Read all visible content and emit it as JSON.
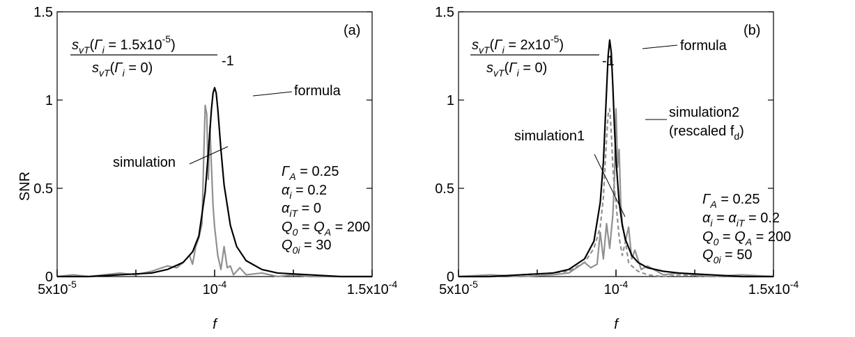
{
  "colors": {
    "formula": "#000000",
    "simulation": "#909090",
    "axis": "#000000",
    "background": "#ffffff"
  },
  "chart_data": [
    {
      "type": "line",
      "panel_label": "(a)",
      "xlabel": "f",
      "ylabel": "SNR",
      "xlim": [
        5e-05,
        0.00015
      ],
      "ylim": [
        0,
        1.5
      ],
      "grid": false,
      "x_tick_labels": [
        {
          "value": 5e-05,
          "base": "5x10",
          "exp": "-5"
        },
        {
          "value": 0.0001,
          "base": "10",
          "exp": "-4"
        },
        {
          "value": 0.00015,
          "base": "1.5x10",
          "exp": "-4"
        }
      ],
      "y_tick_labels": [
        {
          "value": 0,
          "text": "0"
        },
        {
          "value": 0.5,
          "text": "0.5"
        },
        {
          "value": 1,
          "text": "1"
        },
        {
          "value": 1.5,
          "text": "1.5"
        }
      ],
      "formula_fraction": {
        "numerator": "s_vT(Γ_i = 1.5x10^-5)",
        "denominator": "s_vT(Γ_i = 0)",
        "suffix": "-1"
      },
      "parameters": [
        "Γ_A = 0.25",
        "α_i = 0.2",
        "α_iT = 0",
        "Q_0 = Q_A = 200",
        "Q_0i = 30"
      ],
      "series": [
        {
          "name": "formula",
          "style": "solid",
          "x": [
            5e-05,
            6e-05,
            7e-05,
            8e-05,
            8.5e-05,
            9e-05,
            9.3e-05,
            9.5e-05,
            9.7e-05,
            9.8e-05,
            9.9e-05,
            9.95e-05,
            0.0001,
            0.0001005,
            0.000101,
            0.000102,
            0.000103,
            0.000105,
            0.000107,
            0.00011,
            0.000115,
            0.00012,
            0.00013,
            0.00014,
            0.00015
          ],
          "y": [
            0.0,
            0.0,
            0.01,
            0.02,
            0.04,
            0.08,
            0.14,
            0.23,
            0.48,
            0.7,
            0.95,
            1.04,
            1.07,
            1.04,
            0.95,
            0.72,
            0.52,
            0.29,
            0.17,
            0.09,
            0.04,
            0.02,
            0.01,
            0.0,
            0.0
          ]
        },
        {
          "name": "simulation",
          "style": "solid",
          "x": [
            5e-05,
            5.5e-05,
            6e-05,
            6.5e-05,
            7e-05,
            7.5e-05,
            8e-05,
            8.5e-05,
            8.8e-05,
            9e-05,
            9.2e-05,
            9.3e-05,
            9.4e-05,
            9.5e-05,
            9.6e-05,
            9.65e-05,
            9.7e-05,
            9.75e-05,
            9.8e-05,
            9.85e-05,
            9.9e-05,
            9.95e-05,
            0.0001,
            0.000101,
            0.000102,
            0.000103,
            0.000104,
            0.000105,
            0.000106,
            0.000108,
            0.00011,
            0.000115,
            0.00012,
            0.000125,
            0.00013,
            0.00014,
            0.00015
          ],
          "y": [
            0.0,
            0.01,
            0.0,
            0.01,
            0.02,
            0.01,
            0.03,
            0.06,
            0.05,
            0.08,
            0.12,
            0.07,
            0.17,
            0.22,
            0.3,
            0.65,
            0.97,
            0.92,
            0.55,
            0.85,
            0.62,
            0.4,
            0.28,
            0.12,
            0.04,
            0.17,
            0.05,
            0.06,
            0.01,
            0.05,
            0.01,
            0.02,
            0.0,
            0.01,
            0.0,
            0.0,
            0.0
          ]
        }
      ],
      "labels": {
        "formula": "formula",
        "simulation": "simulation"
      }
    },
    {
      "type": "line",
      "panel_label": "(b)",
      "xlabel": "f",
      "ylabel": "",
      "xlim": [
        5e-05,
        0.00015
      ],
      "ylim": [
        0,
        1.5
      ],
      "grid": false,
      "x_tick_labels": [
        {
          "value": 5e-05,
          "base": "5x10",
          "exp": "-5"
        },
        {
          "value": 0.0001,
          "base": "10",
          "exp": "-4"
        },
        {
          "value": 0.00015,
          "base": "1.5x10",
          "exp": "-4"
        }
      ],
      "y_tick_labels": [
        {
          "value": 0,
          "text": "0"
        },
        {
          "value": 0.5,
          "text": "0.5"
        },
        {
          "value": 1,
          "text": "1"
        },
        {
          "value": 1.5,
          "text": "1.5"
        }
      ],
      "formula_fraction": {
        "numerator": "s_vT(Γ_i = 2x10^-5)",
        "denominator": "s_vT(Γ_i = 0)",
        "suffix": "-1"
      },
      "parameters": [
        "Γ_A = 0.25",
        "α_i = α_iT = 0.2",
        "Q_0 = Q_A = 200",
        "Q_0i = 50"
      ],
      "series": [
        {
          "name": "formula",
          "style": "solid",
          "x": [
            5e-05,
            6e-05,
            7e-05,
            8e-05,
            8.5e-05,
            9e-05,
            9.3e-05,
            9.5e-05,
            9.6e-05,
            9.7e-05,
            9.75e-05,
            9.8e-05,
            9.85e-05,
            9.9e-05,
            9.95e-05,
            0.0001,
            0.000101,
            0.000102,
            0.000103,
            0.000105,
            0.000107,
            0.00011,
            0.000115,
            0.00012,
            0.00013,
            0.00014,
            0.00015
          ],
          "y": [
            0.0,
            0.0,
            0.01,
            0.02,
            0.04,
            0.1,
            0.2,
            0.42,
            0.65,
            1.05,
            1.25,
            1.34,
            1.27,
            1.08,
            0.85,
            0.66,
            0.42,
            0.29,
            0.21,
            0.12,
            0.08,
            0.05,
            0.03,
            0.02,
            0.01,
            0.0,
            0.0
          ]
        },
        {
          "name": "simulation1",
          "style": "solid",
          "x": [
            5e-05,
            6e-05,
            7e-05,
            8e-05,
            8.5e-05,
            9e-05,
            9.2e-05,
            9.4e-05,
            9.5e-05,
            9.6e-05,
            9.7e-05,
            9.8e-05,
            9.9e-05,
            9.95e-05,
            0.0001,
            0.0001005,
            0.000101,
            0.0001015,
            0.000102,
            0.000103,
            0.000104,
            0.000105,
            0.000106,
            0.000108,
            0.00011,
            0.000115,
            0.00012,
            0.00013,
            0.00014,
            0.00015
          ],
          "y": [
            0.0,
            0.01,
            0.0,
            0.01,
            0.02,
            0.08,
            0.05,
            0.07,
            0.25,
            0.1,
            0.3,
            0.16,
            0.35,
            0.55,
            0.95,
            0.62,
            0.72,
            0.42,
            0.3,
            0.2,
            0.28,
            0.1,
            0.15,
            0.04,
            0.06,
            0.01,
            0.02,
            0.0,
            0.01,
            0.0
          ]
        },
        {
          "name": "simulation2",
          "style": "dashed",
          "x": [
            5e-05,
            6e-05,
            7e-05,
            8e-05,
            8.5e-05,
            9e-05,
            9.3e-05,
            9.5e-05,
            9.6e-05,
            9.7e-05,
            9.75e-05,
            9.8e-05,
            9.85e-05,
            9.9e-05,
            9.95e-05,
            0.0001,
            0.000101,
            0.000102,
            0.000103,
            0.000104,
            0.000105,
            0.000107,
            0.00011,
            0.000115,
            0.00012,
            0.00013,
            0.00015
          ],
          "y": [
            0.0,
            0.0,
            0.01,
            0.02,
            0.03,
            0.08,
            0.16,
            0.28,
            0.45,
            0.78,
            0.92,
            0.95,
            0.82,
            0.62,
            0.5,
            0.42,
            0.22,
            0.12,
            0.2,
            0.08,
            0.06,
            0.03,
            0.01,
            0.0,
            0.01,
            0.0,
            0.0
          ]
        }
      ],
      "labels": {
        "formula": "formula",
        "simulation1": "simulation1",
        "simulation2_line1": "simulation2",
        "simulation2_line2": "(rescaled f",
        "simulation2_line2_sub": "d",
        "simulation2_line2_end": ")"
      }
    }
  ]
}
